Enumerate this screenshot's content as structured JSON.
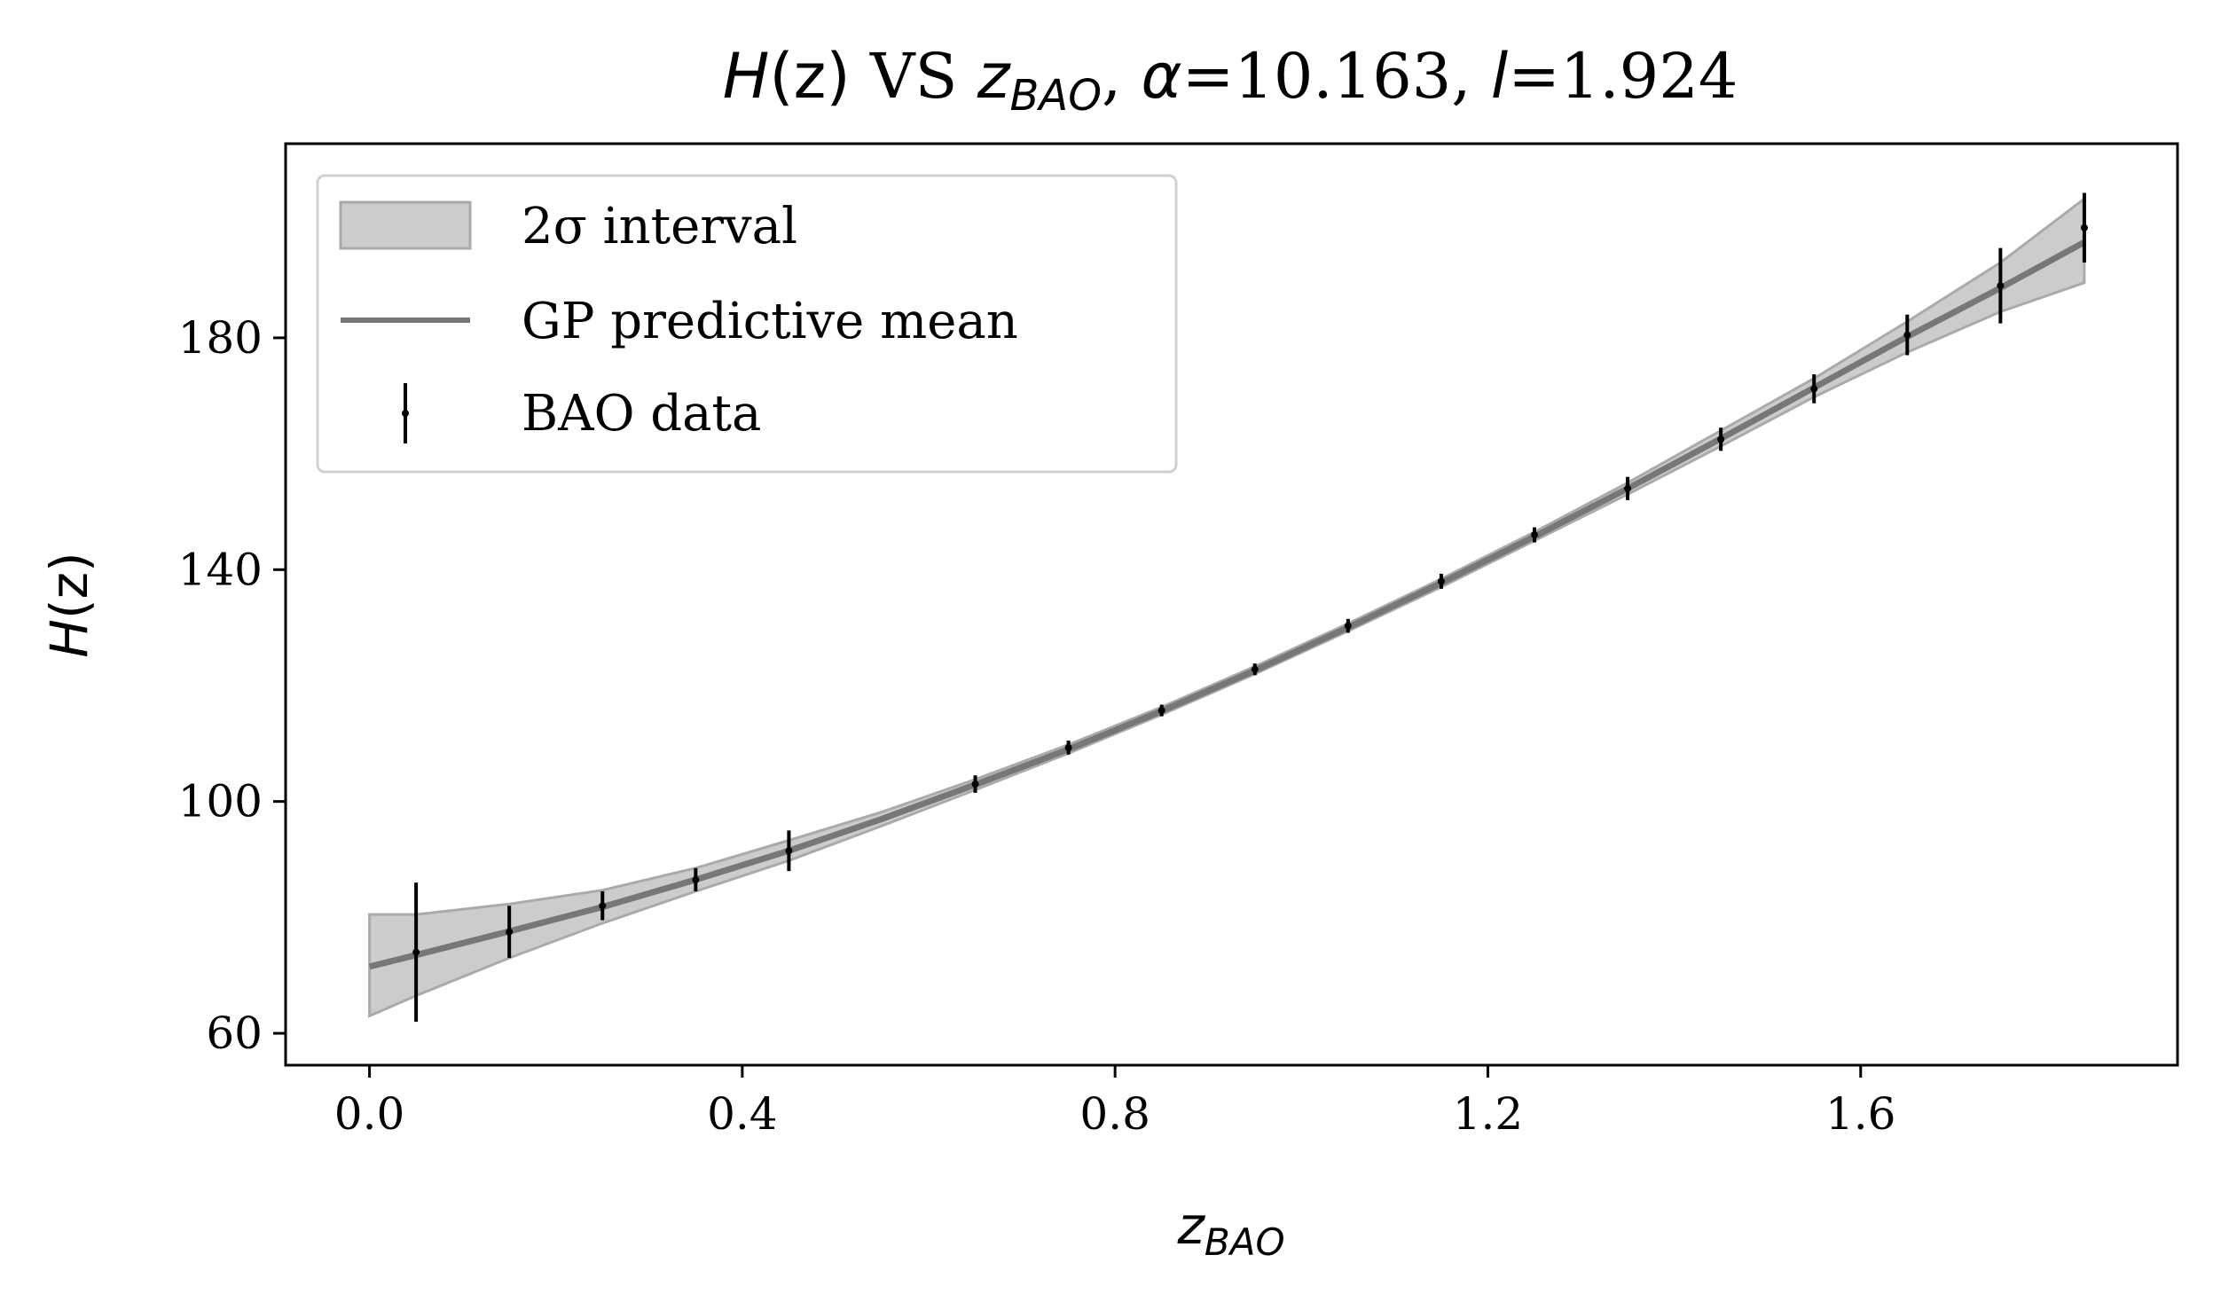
{
  "chart_data": {
    "type": "line",
    "title": {
      "h_symbol": "H",
      "h_arg": "(z)",
      "vs": " VS ",
      "z_symbol": "z",
      "z_sub": "BAO",
      "alpha_symbol": "α",
      "alpha_value": "=10.163, ",
      "l_symbol": "l",
      "l_value": "=1.924"
    },
    "xlabel": {
      "symbol": "z",
      "sub": "BAO"
    },
    "ylabel": {
      "symbol": "H",
      "arg": "(z)"
    },
    "xlim": [
      -0.09,
      1.94
    ],
    "ylim": [
      54.5,
      213.5
    ],
    "xticks": [
      0.0,
      0.4,
      0.8,
      1.2,
      1.6
    ],
    "xtick_labels": [
      "0.0",
      "0.4",
      "0.8",
      "1.2",
      "1.6"
    ],
    "yticks": [
      60,
      100,
      140,
      180
    ],
    "ytick_labels": [
      "60",
      "100",
      "140",
      "180"
    ],
    "grid": false,
    "legend": {
      "placement": "upper-left",
      "entries": [
        "2σ interval",
        "GP predictive mean",
        "BAO data"
      ]
    },
    "colors": {
      "band": "#cccccc",
      "band_edge": "#aaaaaa",
      "mean": "#777777",
      "data": "#000000"
    },
    "series": [
      {
        "name": "GP predictive mean",
        "kind": "line",
        "x": [
          0.0,
          0.05,
          0.15,
          0.25,
          0.35,
          0.45,
          0.55,
          0.65,
          0.75,
          0.85,
          0.95,
          1.05,
          1.15,
          1.25,
          1.35,
          1.45,
          1.55,
          1.65,
          1.75,
          1.84
        ],
        "y": [
          71.5,
          73.5,
          77.6,
          81.8,
          86.5,
          91.5,
          97.0,
          102.9,
          109.0,
          115.6,
          122.6,
          130.0,
          137.7,
          145.7,
          154.0,
          162.6,
          171.4,
          180.2,
          188.6,
          196.5
        ]
      },
      {
        "name": "2σ interval",
        "kind": "band",
        "x": [
          0.0,
          0.05,
          0.15,
          0.25,
          0.35,
          0.45,
          0.55,
          0.65,
          0.75,
          0.85,
          0.95,
          1.05,
          1.15,
          1.25,
          1.35,
          1.45,
          1.55,
          1.65,
          1.75,
          1.84
        ],
        "lower": [
          63.0,
          66.5,
          73.0,
          79.0,
          84.5,
          89.8,
          95.8,
          102.0,
          108.3,
          115.0,
          122.0,
          129.4,
          137.0,
          145.0,
          153.0,
          161.3,
          169.8,
          177.5,
          184.5,
          189.5
        ],
        "upper": [
          80.5,
          80.5,
          82.3,
          84.7,
          88.5,
          93.3,
          98.2,
          103.8,
          109.8,
          116.3,
          123.3,
          130.7,
          138.4,
          146.5,
          155.0,
          164.0,
          173.0,
          182.8,
          193.0,
          204.0
        ]
      },
      {
        "name": "BAO data",
        "kind": "errorbar",
        "x": [
          0.05,
          0.15,
          0.25,
          0.35,
          0.45,
          0.65,
          0.75,
          0.85,
          0.95,
          1.05,
          1.15,
          1.25,
          1.35,
          1.45,
          1.55,
          1.65,
          1.75,
          1.84
        ],
        "y": [
          74.0,
          77.5,
          82.0,
          86.5,
          91.5,
          103.0,
          109.3,
          115.7,
          122.8,
          130.3,
          138.0,
          146.0,
          154.0,
          162.5,
          171.2,
          180.5,
          189.0,
          199.0
        ],
        "yerr": [
          12.0,
          4.5,
          2.5,
          2.0,
          3.5,
          1.5,
          1.2,
          1.0,
          1.0,
          1.2,
          1.3,
          1.3,
          2.0,
          2.0,
          2.5,
          3.5,
          6.5,
          6.0
        ]
      }
    ]
  }
}
